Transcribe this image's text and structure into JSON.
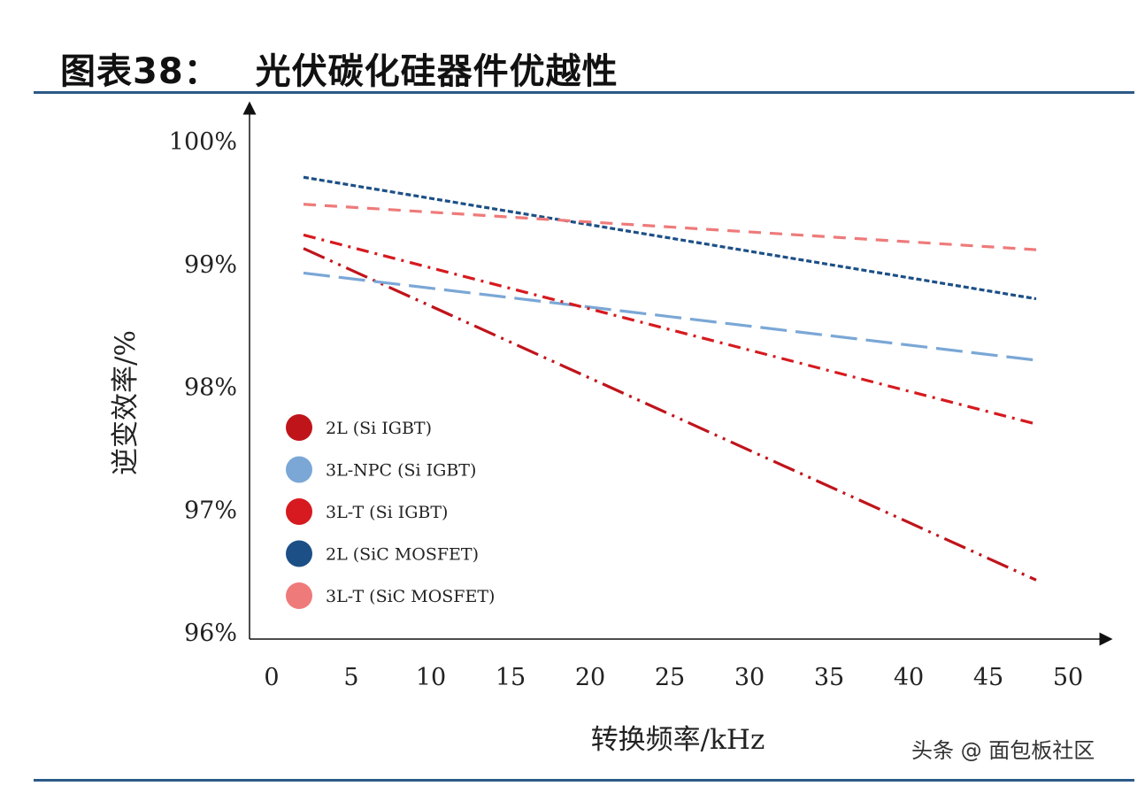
{
  "header": {
    "figure_no": "图表38：",
    "title": "光伏碳化硅器件优越性"
  },
  "watermark": "头条 @ 面包板社区",
  "colors": {
    "rule": "#2b5a86",
    "series_2L_SiIGBT": "#c0141b",
    "series_3LNPC_SiIGBT": "#7aa7d6",
    "series_3LT_SiIGBT": "#d61a1f",
    "series_2L_SiCMOSFET": "#1c4f86",
    "series_3LT_SiCMOSFET": "#ef7a7a"
  },
  "chart_data": {
    "type": "line",
    "title": "光伏碳化硅器件优越性",
    "xlabel": "转换频率/kHz",
    "ylabel": "逆变效率/%",
    "xlim": [
      0,
      50
    ],
    "ylim": [
      96,
      100
    ],
    "x_ticks": [
      "0",
      "5",
      "10",
      "15",
      "20",
      "25",
      "30",
      "35",
      "40",
      "45",
      "50"
    ],
    "y_ticks": [
      "96%",
      "97%",
      "98%",
      "99%",
      "100%"
    ],
    "grid": false,
    "legend_position": "bottom-left",
    "series": [
      {
        "name": "2L (Si IGBT)",
        "x": [
          2,
          48
        ],
        "y": [
          99.13,
          96.43
        ],
        "color": "#c0141b",
        "dash": "dashdotdot"
      },
      {
        "name": "3L-NPC (Si IGBT)",
        "x": [
          2,
          48
        ],
        "y": [
          98.93,
          98.22
        ],
        "color": "#7aa7d6",
        "dash": "longdash"
      },
      {
        "name": "3L-T (Si IGBT)",
        "x": [
          2,
          48
        ],
        "y": [
          99.24,
          97.7
        ],
        "color": "#d61a1f",
        "dash": "dashdot"
      },
      {
        "name": "2L (SiC MOSFET)",
        "x": [
          2,
          48
        ],
        "y": [
          99.71,
          98.72
        ],
        "color": "#1c4f86",
        "dash": "shortdash"
      },
      {
        "name": "3L-T (SiC MOSFET)",
        "x": [
          2,
          48
        ],
        "y": [
          99.49,
          99.12
        ],
        "color": "#ef7a7a",
        "dash": "dash"
      }
    ]
  }
}
